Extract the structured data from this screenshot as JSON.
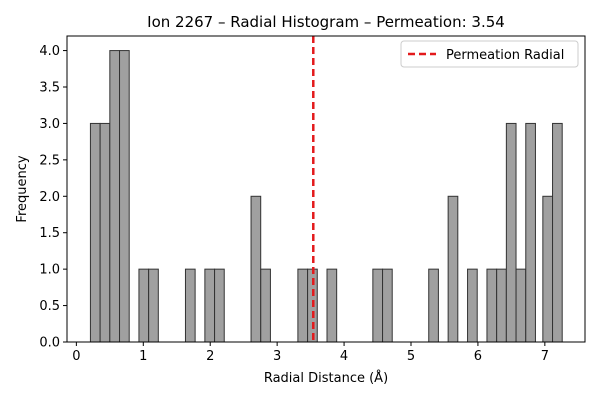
{
  "chart_data": {
    "type": "bar",
    "title": "Ion 2267 – Radial Histogram – Permeation: 3.54",
    "xlabel": "Radial Distance (Å)",
    "ylabel": "Frequency",
    "xlim": [
      -0.14,
      7.6
    ],
    "ylim": [
      0,
      4.2
    ],
    "x_ticks": [
      0,
      1,
      2,
      3,
      4,
      5,
      6,
      7
    ],
    "y_ticks": [
      0.0,
      0.5,
      1.0,
      1.5,
      2.0,
      2.5,
      3.0,
      3.5,
      4.0
    ],
    "y_tick_labels": [
      "0.0",
      "0.5",
      "1.0",
      "1.5",
      "2.0",
      "2.5",
      "3.0",
      "3.5",
      "4.0"
    ],
    "bin_width": 0.1445,
    "bins": [
      {
        "x0": 0.21,
        "count": 3
      },
      {
        "x0": 0.355,
        "count": 3
      },
      {
        "x0": 0.5,
        "count": 4
      },
      {
        "x0": 0.645,
        "count": 4
      },
      {
        "x0": 0.935,
        "count": 1
      },
      {
        "x0": 1.08,
        "count": 1
      },
      {
        "x0": 1.63,
        "count": 1
      },
      {
        "x0": 1.92,
        "count": 1
      },
      {
        "x0": 2.065,
        "count": 1
      },
      {
        "x0": 2.61,
        "count": 2
      },
      {
        "x0": 2.755,
        "count": 1
      },
      {
        "x0": 3.31,
        "count": 1
      },
      {
        "x0": 3.455,
        "count": 1
      },
      {
        "x0": 3.745,
        "count": 1
      },
      {
        "x0": 4.43,
        "count": 1
      },
      {
        "x0": 4.575,
        "count": 1
      },
      {
        "x0": 5.265,
        "count": 1
      },
      {
        "x0": 5.555,
        "count": 2
      },
      {
        "x0": 5.845,
        "count": 1
      },
      {
        "x0": 6.135,
        "count": 1
      },
      {
        "x0": 6.28,
        "count": 1
      },
      {
        "x0": 6.425,
        "count": 3
      },
      {
        "x0": 6.57,
        "count": 1
      },
      {
        "x0": 6.715,
        "count": 3
      },
      {
        "x0": 6.97,
        "count": 2
      },
      {
        "x0": 7.115,
        "count": 3
      }
    ],
    "reference_line": {
      "x": 3.54,
      "label": "Permeation Radial",
      "color": "#e31a1c",
      "style": "dashed"
    },
    "legend": {
      "position": "top-right",
      "entries": [
        "Permeation Radial"
      ]
    },
    "grid": false,
    "bar_color": "#a0a0a0",
    "bar_edge_color": "#333333"
  }
}
